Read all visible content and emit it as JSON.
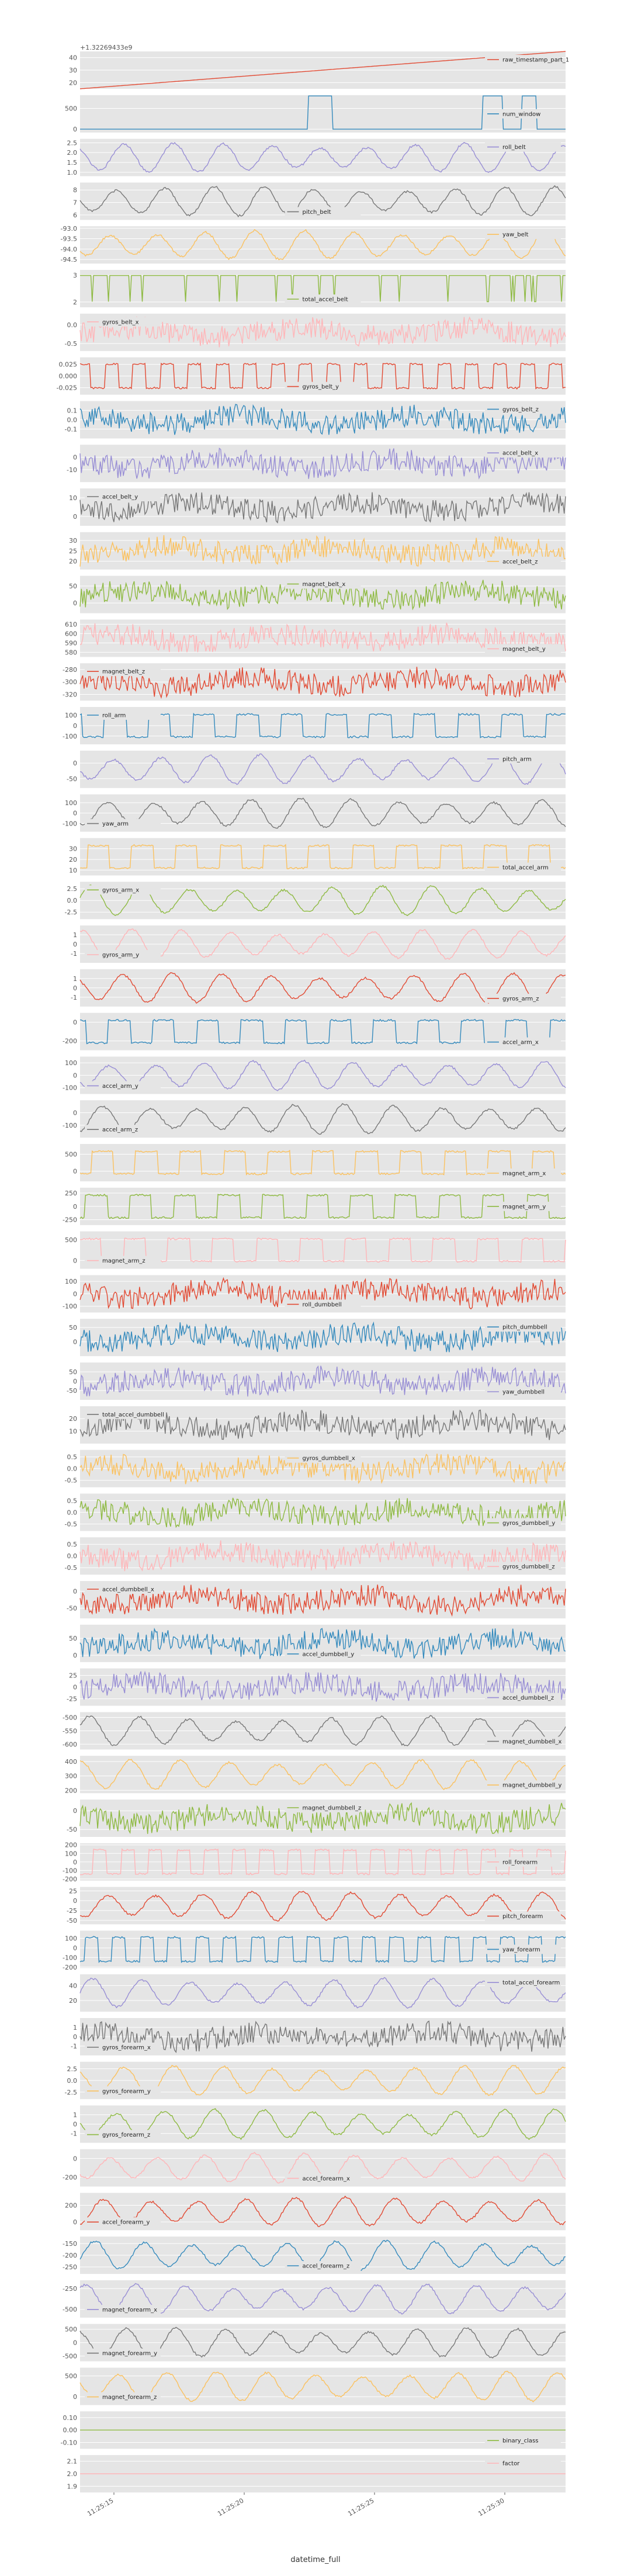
{
  "figure": {
    "offset_text": "+1.32269433e9",
    "xlabel": "datetime_full",
    "x_tick_labels": [
      "11:25:15",
      "11:25:20",
      "11:25:25",
      "11:25:30"
    ]
  },
  "colors": [
    "#E24A33",
    "#348ABD",
    "#988ED5",
    "#777777",
    "#FBC15E",
    "#8EBA42",
    "#FFB5B8"
  ],
  "chart_data": {
    "type": "line",
    "title": "",
    "xlabel": "datetime_full",
    "subplots": [
      {
        "name": "raw_timestamp_part_1",
        "legend": "top-right",
        "yticks": [
          "40",
          "30",
          "20"
        ],
        "ylim": [
          15,
          45
        ],
        "shape": "ramp",
        "start": 15,
        "end": 45
      },
      {
        "name": "num_window",
        "legend": "center-right",
        "yticks": [
          "500",
          "0"
        ],
        "ylim": [
          -80,
          820
        ],
        "shape": "steps",
        "base": 0,
        "high": 800
      },
      {
        "name": "roll_belt",
        "legend": "top-right",
        "yticks": [
          "2.5",
          "2.0",
          "1.5",
          "1.0"
        ],
        "ylim": [
          0.8,
          2.7
        ],
        "shape": "wave"
      },
      {
        "name": "pitch_belt",
        "legend": "bottom-center",
        "yticks": [
          "8",
          "7",
          "6"
        ],
        "ylim": [
          5.6,
          8.6
        ],
        "shape": "wave"
      },
      {
        "name": "yaw_belt",
        "legend": "top-right",
        "yticks": [
          "-93.0",
          "-93.5",
          "-94.0",
          "-94.5"
        ],
        "ylim": [
          -94.7,
          -92.9
        ],
        "shape": "wave"
      },
      {
        "name": "total_accel_belt",
        "legend": "bottom-center",
        "yticks": [
          "3",
          "2"
        ],
        "ylim": [
          1.8,
          3.2
        ],
        "shape": "binary"
      },
      {
        "name": "gyros_belt_x",
        "legend": "top-left",
        "yticks": [
          "0.0",
          "-0.5"
        ],
        "ylim": [
          -0.7,
          0.3
        ],
        "shape": "noise"
      },
      {
        "name": "gyros_belt_y",
        "legend": "bottom-center",
        "yticks": [
          "0.025",
          "0.000",
          "-0.025"
        ],
        "ylim": [
          -0.04,
          0.04
        ],
        "shape": "square"
      },
      {
        "name": "gyros_belt_z",
        "legend": "top-right",
        "yticks": [
          "0.1",
          "0.0",
          "-0.1"
        ],
        "ylim": [
          -0.2,
          0.2
        ],
        "shape": "noise"
      },
      {
        "name": "accel_belt_x",
        "legend": "top-right",
        "yticks": [
          "0",
          "-10"
        ],
        "ylim": [
          -20,
          10
        ],
        "shape": "noise"
      },
      {
        "name": "accel_belt_y",
        "legend": "top-left",
        "yticks": [
          "10",
          "0"
        ],
        "ylim": [
          -5,
          15
        ],
        "shape": "noise"
      },
      {
        "name": "accel_belt_z",
        "legend": "bottom-right",
        "yticks": [
          "30",
          "25",
          "20"
        ],
        "ylim": [
          16,
          34
        ],
        "shape": "noise"
      },
      {
        "name": "magnet_belt_x",
        "legend": "top-center",
        "yticks": [
          "50",
          "0"
        ],
        "ylim": [
          -30,
          80
        ],
        "shape": "noise"
      },
      {
        "name": "magnet_belt_y",
        "legend": "bottom-right",
        "yticks": [
          "610",
          "600",
          "590",
          "580"
        ],
        "ylim": [
          575,
          615
        ],
        "shape": "noise"
      },
      {
        "name": "magnet_belt_z",
        "legend": "top-left",
        "yticks": [
          "-280",
          "-300",
          "-320"
        ],
        "ylim": [
          -330,
          -270
        ],
        "shape": "noise"
      },
      {
        "name": "roll_arm",
        "legend": "top-left",
        "yticks": [
          "100",
          "0",
          "-100"
        ],
        "ylim": [
          -180,
          180
        ],
        "shape": "pulse"
      },
      {
        "name": "pitch_arm",
        "legend": "top-right",
        "yticks": [
          "0",
          "-50"
        ],
        "ylim": [
          -80,
          40
        ],
        "shape": "wave"
      },
      {
        "name": "yaw_arm",
        "legend": "bottom-left",
        "yticks": [
          "100",
          "0",
          "-100"
        ],
        "ylim": [
          -180,
          180
        ],
        "shape": "wave"
      },
      {
        "name": "total_accel_arm",
        "legend": "bottom-right",
        "yticks": [
          "30",
          "20",
          "10"
        ],
        "ylim": [
          5,
          40
        ],
        "shape": "pulse"
      },
      {
        "name": "gyros_arm_x",
        "legend": "top-left",
        "yticks": [
          "2.5",
          "0.0",
          "-2.5"
        ],
        "ylim": [
          -4,
          4
        ],
        "shape": "wave"
      },
      {
        "name": "gyros_arm_y",
        "legend": "bottom-left",
        "yticks": [
          "1",
          "0",
          "-1"
        ],
        "ylim": [
          -2,
          2
        ],
        "shape": "wave"
      },
      {
        "name": "gyros_arm_z",
        "legend": "bottom-right",
        "yticks": [
          "1",
          "0",
          "-1"
        ],
        "ylim": [
          -2,
          2
        ],
        "shape": "wave"
      },
      {
        "name": "accel_arm_x",
        "legend": "bottom-right",
        "yticks": [
          "0",
          "-200"
        ],
        "ylim": [
          -300,
          100
        ],
        "shape": "pulse"
      },
      {
        "name": "accel_arm_y",
        "legend": "bottom-left",
        "yticks": [
          "100",
          "0",
          "-100"
        ],
        "ylim": [
          -150,
          150
        ],
        "shape": "wave"
      },
      {
        "name": "accel_arm_z",
        "legend": "bottom-left",
        "yticks": [
          "0",
          "-100"
        ],
        "ylim": [
          -200,
          100
        ],
        "shape": "wave"
      },
      {
        "name": "magnet_arm_x",
        "legend": "bottom-right",
        "yticks": [
          "500",
          "0"
        ],
        "ylim": [
          -300,
          800
        ],
        "shape": "pulse"
      },
      {
        "name": "magnet_arm_y",
        "legend": "center-right",
        "yticks": [
          "250",
          "0",
          "-250"
        ],
        "ylim": [
          -350,
          350
        ],
        "shape": "pulse"
      },
      {
        "name": "magnet_arm_z",
        "legend": "bottom-left",
        "yticks": [
          "500",
          "0"
        ],
        "ylim": [
          -200,
          700
        ],
        "shape": "pulse"
      },
      {
        "name": "roll_dumbbell",
        "legend": "bottom-center",
        "yticks": [
          "100",
          "0",
          "-100"
        ],
        "ylim": [
          -150,
          150
        ],
        "shape": "noise"
      },
      {
        "name": "pitch_dumbbell",
        "legend": "top-right",
        "yticks": [
          "50",
          "0"
        ],
        "ylim": [
          -50,
          80
        ],
        "shape": "noise"
      },
      {
        "name": "yaw_dumbbell",
        "legend": "bottom-right",
        "yticks": [
          "50",
          "0",
          "-50"
        ],
        "ylim": [
          -100,
          100
        ],
        "shape": "noise"
      },
      {
        "name": "total_accel_dumbbell",
        "legend": "top-left",
        "yticks": [
          "20",
          "10"
        ],
        "ylim": [
          0,
          30
        ],
        "shape": "noise"
      },
      {
        "name": "gyros_dumbbell_x",
        "legend": "top-center",
        "yticks": [
          "0.5",
          "0.0",
          "-0.5"
        ],
        "ylim": [
          -0.8,
          0.8
        ],
        "shape": "noise"
      },
      {
        "name": "gyros_dumbbell_y",
        "legend": "bottom-right",
        "yticks": [
          "0.5",
          "0.0",
          "-0.5"
        ],
        "ylim": [
          -0.8,
          0.8
        ],
        "shape": "noise"
      },
      {
        "name": "gyros_dumbbell_z",
        "legend": "bottom-right",
        "yticks": [
          "0.5",
          "0.0",
          "-0.5"
        ],
        "ylim": [
          -0.8,
          0.8
        ],
        "shape": "noise"
      },
      {
        "name": "accel_dumbbell_x",
        "legend": "top-left",
        "yticks": [
          "0",
          "-50"
        ],
        "ylim": [
          -80,
          30
        ],
        "shape": "noise"
      },
      {
        "name": "accel_dumbbell_y",
        "legend": "bottom-center",
        "yticks": [
          "50",
          "0"
        ],
        "ylim": [
          -20,
          90
        ],
        "shape": "noise"
      },
      {
        "name": "accel_dumbbell_z",
        "legend": "bottom-right",
        "yticks": [
          "25",
          "0",
          "-25"
        ],
        "ylim": [
          -40,
          40
        ],
        "shape": "noise"
      },
      {
        "name": "magnet_dumbbell_x",
        "legend": "bottom-right",
        "yticks": [
          "-500",
          "-550",
          "-600"
        ],
        "ylim": [
          -620,
          -480
        ],
        "shape": "wave"
      },
      {
        "name": "magnet_dumbbell_y",
        "legend": "bottom-right",
        "yticks": [
          "400",
          "300",
          "200"
        ],
        "ylim": [
          180,
          440
        ],
        "shape": "wave"
      },
      {
        "name": "magnet_dumbbell_z",
        "legend": "top-center",
        "yticks": [
          "0",
          "-50"
        ],
        "ylim": [
          -70,
          30
        ],
        "shape": "noise"
      },
      {
        "name": "roll_forearm",
        "legend": "center-right",
        "yticks": [
          "200",
          "100",
          "0",
          "-100",
          "-200"
        ],
        "ylim": [
          -220,
          220
        ],
        "shape": "square"
      },
      {
        "name": "pitch_forearm",
        "legend": "bottom-right",
        "yticks": [
          "25",
          "0",
          "-25",
          "-50"
        ],
        "ylim": [
          -60,
          35
        ],
        "shape": "wave"
      },
      {
        "name": "yaw_forearm",
        "legend": "center-right",
        "yticks": [
          "100",
          "0",
          "-100",
          "-200"
        ],
        "ylim": [
          -210,
          180
        ],
        "shape": "square"
      },
      {
        "name": "total_accel_forearm",
        "legend": "top-right",
        "yticks": [
          "40",
          "20"
        ],
        "ylim": [
          5,
          55
        ],
        "shape": "wave"
      },
      {
        "name": "gyros_forearm_x",
        "legend": "bottom-left",
        "yticks": [
          "1",
          "0",
          "-1"
        ],
        "ylim": [
          -2,
          2
        ],
        "shape": "noise"
      },
      {
        "name": "gyros_forearm_y",
        "legend": "bottom-left",
        "yticks": [
          "2.5",
          "0.0",
          "-2.5"
        ],
        "ylim": [
          -4,
          4
        ],
        "shape": "wave"
      },
      {
        "name": "gyros_forearm_z",
        "legend": "bottom-left",
        "yticks": [
          "1",
          "0",
          "-1"
        ],
        "ylim": [
          -2,
          2
        ],
        "shape": "wave"
      },
      {
        "name": "accel_forearm_x",
        "legend": "bottom-center",
        "yticks": [
          "0",
          "-200"
        ],
        "ylim": [
          -300,
          100
        ],
        "shape": "wave"
      },
      {
        "name": "accel_forearm_y",
        "legend": "bottom-left",
        "yticks": [
          "200",
          "0"
        ],
        "ylim": [
          -100,
          350
        ],
        "shape": "wave"
      },
      {
        "name": "accel_forearm_z",
        "legend": "bottom-center",
        "yticks": [
          "-150",
          "-200",
          "-250"
        ],
        "ylim": [
          -280,
          -120
        ],
        "shape": "wave"
      },
      {
        "name": "magnet_forearm_x",
        "legend": "bottom-left",
        "yticks": [
          "-250",
          "-500"
        ],
        "ylim": [
          -600,
          -150
        ],
        "shape": "wave"
      },
      {
        "name": "magnet_forearm_y",
        "legend": "bottom-left",
        "yticks": [
          "500",
          "0",
          "-500"
        ],
        "ylim": [
          -700,
          700
        ],
        "shape": "wave"
      },
      {
        "name": "magnet_forearm_z",
        "legend": "bottom-left",
        "yticks": [
          "500",
          "0"
        ],
        "ylim": [
          -200,
          700
        ],
        "shape": "wave"
      },
      {
        "name": "binary_class",
        "legend": "bottom-right",
        "yticks": [
          "0.10",
          "0.00",
          "-0.10"
        ],
        "ylim": [
          -0.15,
          0.15
        ],
        "shape": "flat",
        "base": 0
      },
      {
        "name": "factor",
        "legend": "top-right",
        "yticks": [
          "2.1",
          "2.0",
          "1.9"
        ],
        "ylim": [
          1.85,
          2.15
        ],
        "shape": "flat",
        "base": 2.0
      }
    ]
  }
}
